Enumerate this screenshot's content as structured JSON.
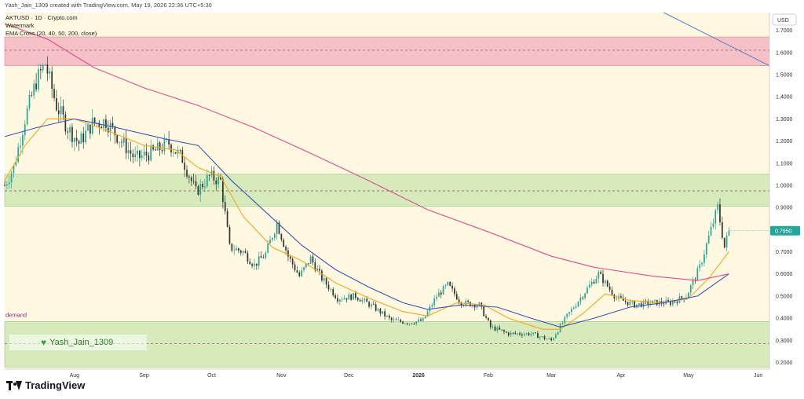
{
  "header": {
    "creator_text": "Yash_Jain_1309 created with TradingView.com, May 19, 2026 22:36 UTC+5:30"
  },
  "legend": {
    "symbol_line": "AKTUSD · 1D · Crypto.com",
    "watermark_line": "Watermark",
    "indicator_line": "EMA Cross (20, 40, 50, 200, close)"
  },
  "watermark_label": "Yash_Jain_1309",
  "zone_label": "demand",
  "currency_label": "USD",
  "price_label": "0.7950",
  "brand": "TradingView",
  "colors": {
    "background": "#fff8e1",
    "supply_zone": "#f4b6c2",
    "demand_zone": "#cfe8b4",
    "candle_up": "#26a69a",
    "candle_down": "#333333",
    "ema_fast": "#f4a81d",
    "ema_mid": "#3f51b5",
    "ema_slow": "#e04c8c",
    "trendline": "#5b7ec9",
    "price_tag": "#26a69a"
  },
  "chart_data": {
    "type": "candlestick",
    "symbol": "AKTUSD",
    "interval": "1D",
    "exchange": "Crypto.com",
    "y_axis": {
      "ticks": [
        "1.7000",
        "1.6000",
        "1.5000",
        "1.4000",
        "1.3000",
        "1.2000",
        "1.1000",
        "1.0000",
        "0.9000",
        "0.7000",
        "0.6000",
        "0.5000",
        "0.4000",
        "0.3000",
        "0.2000"
      ],
      "range": [
        0.17,
        1.78
      ],
      "scale": "linear",
      "position": "right"
    },
    "x_axis": {
      "ticks": [
        "Aug",
        "Sep",
        "Oct",
        "Nov",
        "Dec",
        "2026",
        "Feb",
        "Mar",
        "Apr",
        "May",
        "Jun"
      ],
      "range": [
        "2025-07-01",
        "2026-06-06"
      ]
    },
    "zones": [
      {
        "name": "supply",
        "low": 1.54,
        "high": 1.67,
        "mid_dashed": 1.61
      },
      {
        "name": "mid",
        "low": 0.905,
        "high": 1.05,
        "mid_dashed": 0.975
      },
      {
        "name": "demand",
        "low": 0.18,
        "high": 0.385,
        "mid_dashed": 0.285
      }
    ],
    "last_price": 0.795,
    "price_path": [
      [
        "2025-07-01",
        1.0
      ],
      [
        "2025-07-05",
        1.08
      ],
      [
        "2025-07-10",
        1.3
      ],
      [
        "2025-07-15",
        1.47
      ],
      [
        "2025-07-19",
        1.55
      ],
      [
        "2025-07-24",
        1.36
      ],
      [
        "2025-07-29",
        1.26
      ],
      [
        "2025-08-03",
        1.19
      ],
      [
        "2025-08-09",
        1.28
      ],
      [
        "2025-08-15",
        1.29
      ],
      [
        "2025-08-21",
        1.21
      ],
      [
        "2025-08-28",
        1.12
      ],
      [
        "2025-09-05",
        1.15
      ],
      [
        "2025-09-12",
        1.19
      ],
      [
        "2025-09-18",
        1.12
      ],
      [
        "2025-09-24",
        0.97
      ],
      [
        "2025-09-30",
        1.04
      ],
      [
        "2025-10-05",
        1.02
      ],
      [
        "2025-10-09",
        0.72
      ],
      [
        "2025-10-15",
        0.7
      ],
      [
        "2025-10-20",
        0.64
      ],
      [
        "2025-10-25",
        0.69
      ],
      [
        "2025-10-30",
        0.83
      ],
      [
        "2025-11-04",
        0.68
      ],
      [
        "2025-11-09",
        0.59
      ],
      [
        "2025-11-14",
        0.67
      ],
      [
        "2025-11-19",
        0.58
      ],
      [
        "2025-11-26",
        0.49
      ],
      [
        "2025-12-04",
        0.5
      ],
      [
        "2025-12-12",
        0.45
      ],
      [
        "2025-12-20",
        0.39
      ],
      [
        "2025-12-28",
        0.38
      ],
      [
        "2026-01-03",
        0.39
      ],
      [
        "2026-01-09",
        0.5
      ],
      [
        "2026-01-14",
        0.55
      ],
      [
        "2026-01-20",
        0.47
      ],
      [
        "2026-01-28",
        0.46
      ],
      [
        "2026-02-02",
        0.36
      ],
      [
        "2026-02-10",
        0.33
      ],
      [
        "2026-02-20",
        0.33
      ],
      [
        "2026-03-01",
        0.3
      ],
      [
        "2026-03-08",
        0.41
      ],
      [
        "2026-03-16",
        0.52
      ],
      [
        "2026-03-22",
        0.6
      ],
      [
        "2026-03-30",
        0.49
      ],
      [
        "2026-04-07",
        0.46
      ],
      [
        "2026-04-15",
        0.47
      ],
      [
        "2026-04-23",
        0.47
      ],
      [
        "2026-04-30",
        0.5
      ],
      [
        "2026-05-06",
        0.63
      ],
      [
        "2026-05-11",
        0.8
      ],
      [
        "2026-05-14",
        0.9
      ],
      [
        "2026-05-17",
        0.72
      ],
      [
        "2026-05-19",
        0.795
      ]
    ],
    "series": [
      {
        "name": "EMA 20",
        "values": [
          [
            "2025-07-01",
            1.02
          ],
          [
            "2025-07-10",
            1.18
          ],
          [
            "2025-07-20",
            1.3
          ],
          [
            "2025-08-01",
            1.3
          ],
          [
            "2025-08-15",
            1.25
          ],
          [
            "2025-09-01",
            1.18
          ],
          [
            "2025-09-15",
            1.16
          ],
          [
            "2025-09-25",
            1.08
          ],
          [
            "2025-10-05",
            1.04
          ],
          [
            "2025-10-15",
            0.86
          ],
          [
            "2025-10-28",
            0.72
          ],
          [
            "2025-11-10",
            0.66
          ],
          [
            "2025-11-25",
            0.56
          ],
          [
            "2025-12-10",
            0.49
          ],
          [
            "2025-12-25",
            0.43
          ],
          [
            "2026-01-05",
            0.41
          ],
          [
            "2026-01-18",
            0.47
          ],
          [
            "2026-01-30",
            0.46
          ],
          [
            "2026-02-10",
            0.4
          ],
          [
            "2026-02-25",
            0.35
          ],
          [
            "2026-03-05",
            0.35
          ],
          [
            "2026-03-15",
            0.42
          ],
          [
            "2026-03-25",
            0.51
          ],
          [
            "2026-04-05",
            0.48
          ],
          [
            "2026-04-20",
            0.47
          ],
          [
            "2026-05-01",
            0.49
          ],
          [
            "2026-05-10",
            0.58
          ],
          [
            "2026-05-19",
            0.7
          ]
        ]
      },
      {
        "name": "EMA 50",
        "values": [
          [
            "2025-07-01",
            1.22
          ],
          [
            "2025-07-15",
            1.26
          ],
          [
            "2025-08-01",
            1.3
          ],
          [
            "2025-08-20",
            1.26
          ],
          [
            "2025-09-10",
            1.21
          ],
          [
            "2025-09-25",
            1.18
          ],
          [
            "2025-10-10",
            1.02
          ],
          [
            "2025-10-25",
            0.88
          ],
          [
            "2025-11-10",
            0.73
          ],
          [
            "2025-11-25",
            0.62
          ],
          [
            "2025-12-10",
            0.54
          ],
          [
            "2025-12-25",
            0.47
          ],
          [
            "2026-01-05",
            0.44
          ],
          [
            "2026-01-20",
            0.46
          ],
          [
            "2026-02-05",
            0.45
          ],
          [
            "2026-02-20",
            0.4
          ],
          [
            "2026-03-05",
            0.36
          ],
          [
            "2026-03-20",
            0.4
          ],
          [
            "2026-04-05",
            0.45
          ],
          [
            "2026-04-20",
            0.47
          ],
          [
            "2026-05-05",
            0.5
          ],
          [
            "2026-05-19",
            0.6
          ]
        ]
      },
      {
        "name": "EMA 200",
        "values": [
          [
            "2025-07-01",
            1.73
          ],
          [
            "2025-07-20",
            1.66
          ],
          [
            "2025-08-10",
            1.53
          ],
          [
            "2025-09-01",
            1.44
          ],
          [
            "2025-09-25",
            1.36
          ],
          [
            "2025-10-20",
            1.26
          ],
          [
            "2025-11-15",
            1.14
          ],
          [
            "2025-12-10",
            1.02
          ],
          [
            "2026-01-05",
            0.89
          ],
          [
            "2026-02-01",
            0.79
          ],
          [
            "2026-03-01",
            0.68
          ],
          [
            "2026-03-20",
            0.63
          ],
          [
            "2026-04-15",
            0.59
          ],
          [
            "2026-05-05",
            0.57
          ],
          [
            "2026-05-19",
            0.6
          ]
        ]
      }
    ],
    "trendline": {
      "from": [
        "2026-04-20",
        1.78
      ],
      "to": [
        "2026-06-06",
        1.54
      ]
    }
  }
}
